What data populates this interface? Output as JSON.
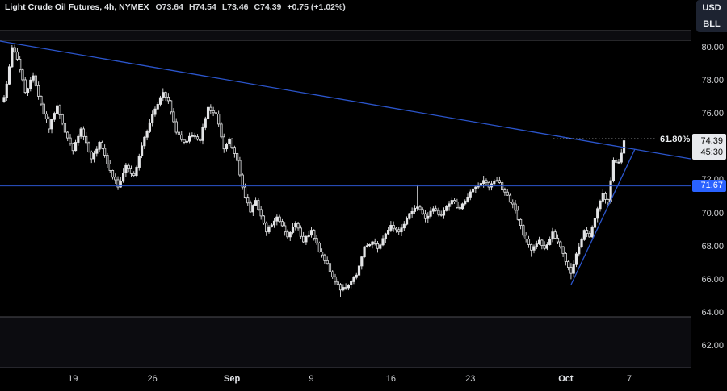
{
  "window": {
    "app": "tradingview-chart"
  },
  "legend": {
    "title": "Light Crude Oil Futures, 4h, NYMEX",
    "open_label": "O73.64",
    "high_label": "H74.54",
    "low_label": "L73.46",
    "close_label": "C74.39",
    "change_label": "+0.75 (+1.02%)"
  },
  "unit_toggle": {
    "currency": "USD",
    "unit": "BLL"
  },
  "chart_data": {
    "type": "candlestick",
    "symbol": "Light Crude Oil Futures",
    "interval": "4h",
    "exchange": "NYMEX",
    "last": {
      "o": 73.64,
      "h": 74.54,
      "l": 73.46,
      "c": 74.39,
      "change": "+0.75 (+1.02%)"
    },
    "y_ticks": [
      "80.00",
      "78.00",
      "76.00",
      "74.00",
      "72.00",
      "70.00",
      "68.00",
      "66.00",
      "64.00",
      "62.00"
    ],
    "x_labels": [
      {
        "t": "19",
        "i": 26,
        "bold": false
      },
      {
        "t": "26",
        "i": 56,
        "bold": false
      },
      {
        "t": "Sep",
        "i": 86,
        "bold": true
      },
      {
        "t": "9",
        "i": 116,
        "bold": false
      },
      {
        "t": "16",
        "i": 146,
        "bold": false
      },
      {
        "t": "23",
        "i": 176,
        "bold": false
      },
      {
        "t": "Oct",
        "i": 212,
        "bold": true
      },
      {
        "t": "7",
        "i": 236,
        "bold": false
      }
    ],
    "current_label": {
      "price": "74.39",
      "countdown": "45:30"
    },
    "price_line": {
      "price": 71.67,
      "label": "71.67"
    },
    "fib": {
      "label": "61.80%",
      "price": 74.51,
      "x1": 685,
      "x2": 812
    },
    "trendlines": [
      {
        "name": "descending",
        "x1": 0,
        "y1": 51,
        "x2": 855,
        "y2": 197
      },
      {
        "name": "ascending",
        "x1": 707,
        "y1": 353,
        "x2": 786,
        "y2": 185
      }
    ],
    "bands": [
      {
        "y1": 38,
        "y2": 50
      },
      {
        "y1": 393,
        "y2": 455
      }
    ],
    "num_candles": 235,
    "seed": 7,
    "anchors": [
      [
        0,
        77.0,
        null,
        null
      ],
      [
        1,
        77.8,
        null,
        null
      ],
      [
        3,
        80.0,
        80.15,
        null
      ],
      [
        5,
        79.3,
        null,
        null
      ],
      [
        8,
        77.3,
        null,
        null
      ],
      [
        11,
        78.3,
        null,
        null
      ],
      [
        14,
        76.6,
        null,
        null
      ],
      [
        17,
        75.1,
        null,
        null
      ],
      [
        20,
        76.5,
        null,
        null
      ],
      [
        23,
        74.9,
        null,
        null
      ],
      [
        26,
        73.8,
        null,
        null
      ],
      [
        29,
        75.1,
        null,
        null
      ],
      [
        33,
        73.3,
        null,
        null
      ],
      [
        36,
        74.3,
        null,
        null
      ],
      [
        40,
        72.6,
        null,
        null
      ],
      [
        43,
        71.6,
        null,
        71.42
      ],
      [
        46,
        72.9,
        null,
        null
      ],
      [
        49,
        72.3,
        null,
        null
      ],
      [
        53,
        74.6,
        null,
        null
      ],
      [
        57,
        76.3,
        null,
        null
      ],
      [
        60,
        77.3,
        77.55,
        null
      ],
      [
        62,
        76.8,
        null,
        null
      ],
      [
        65,
        74.9,
        null,
        null
      ],
      [
        68,
        74.3,
        null,
        null
      ],
      [
        71,
        74.7,
        null,
        null
      ],
      [
        74,
        74.4,
        null,
        null
      ],
      [
        77,
        76.4,
        76.72,
        null
      ],
      [
        80,
        76.0,
        null,
        null
      ],
      [
        83,
        73.9,
        null,
        null
      ],
      [
        85,
        74.5,
        null,
        null
      ],
      [
        88,
        73.2,
        null,
        null
      ],
      [
        90,
        71.6,
        null,
        null
      ],
      [
        93,
        70.1,
        null,
        null
      ],
      [
        95,
        70.8,
        null,
        null
      ],
      [
        99,
        68.9,
        null,
        null
      ],
      [
        103,
        69.8,
        null,
        null
      ],
      [
        107,
        68.6,
        null,
        null
      ],
      [
        110,
        69.4,
        null,
        null
      ],
      [
        113,
        68.3,
        null,
        null
      ],
      [
        116,
        69.0,
        null,
        null
      ],
      [
        119,
        67.7,
        null,
        null
      ],
      [
        122,
        67.0,
        null,
        null
      ],
      [
        124,
        66.2,
        null,
        null
      ],
      [
        127,
        65.4,
        null,
        65.0
      ],
      [
        130,
        65.7,
        null,
        null
      ],
      [
        133,
        66.3,
        null,
        null
      ],
      [
        136,
        68.0,
        null,
        null
      ],
      [
        139,
        68.3,
        null,
        null
      ],
      [
        141,
        67.9,
        null,
        null
      ],
      [
        146,
        69.3,
        null,
        null
      ],
      [
        149,
        68.9,
        null,
        null
      ],
      [
        153,
        70.0,
        null,
        null
      ],
      [
        156,
        70.4,
        71.75,
        null
      ],
      [
        159,
        69.7,
        null,
        null
      ],
      [
        162,
        70.3,
        null,
        null
      ],
      [
        165,
        69.9,
        null,
        null
      ],
      [
        169,
        70.8,
        null,
        null
      ],
      [
        172,
        70.3,
        null,
        null
      ],
      [
        175,
        71.0,
        null,
        null
      ],
      [
        178,
        71.6,
        null,
        null
      ],
      [
        181,
        72.0,
        72.28,
        null
      ],
      [
        183,
        71.6,
        null,
        null
      ],
      [
        186,
        72.0,
        72.2,
        null
      ],
      [
        189,
        71.3,
        null,
        null
      ],
      [
        193,
        70.2,
        null,
        null
      ],
      [
        196,
        68.7,
        null,
        null
      ],
      [
        199,
        67.8,
        null,
        67.4
      ],
      [
        202,
        68.4,
        null,
        null
      ],
      [
        204,
        67.9,
        null,
        null
      ],
      [
        207,
        68.9,
        null,
        null
      ],
      [
        209,
        68.3,
        null,
        null
      ],
      [
        211,
        67.6,
        null,
        null
      ],
      [
        214,
        66.4,
        null,
        66.05
      ],
      [
        217,
        68.0,
        null,
        null
      ],
      [
        219,
        69.0,
        null,
        null
      ],
      [
        221,
        68.6,
        null,
        null
      ],
      [
        224,
        70.3,
        null,
        null
      ],
      [
        226,
        71.2,
        null,
        null
      ],
      [
        228,
        70.7,
        null,
        null
      ],
      [
        230,
        73.2,
        null,
        null
      ],
      [
        232,
        73.1,
        null,
        null
      ],
      [
        233,
        73.64,
        null,
        null
      ],
      [
        234,
        74.39,
        null,
        null
      ]
    ],
    "colors": {
      "background": "#000000",
      "candle": "#e3e4e6",
      "blue": "#2962ff",
      "trend_blue": "#2b55cc",
      "axis_text": "#cfd1d4",
      "label_bg": "#e7e9ed",
      "band_line": "#4b4c52",
      "fib_line": "#b8b9bd"
    }
  }
}
